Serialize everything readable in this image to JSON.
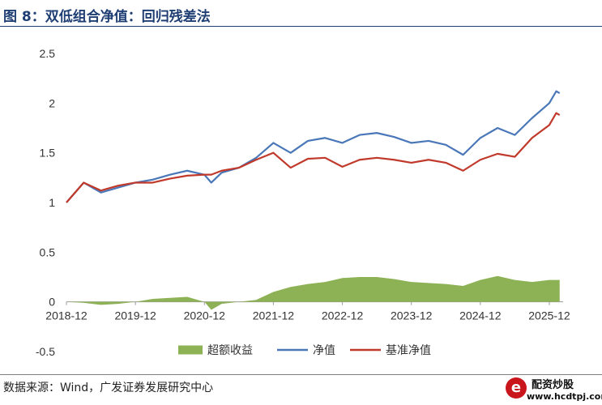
{
  "figure": {
    "title": "图 8：双低组合净值：回归残差法",
    "source": "数据来源：Wind，广发证券发展研究中心"
  },
  "watermark": {
    "mark": "e",
    "name": "配资炒股",
    "url": "www.hcdtpj.com"
  },
  "chart_data": {
    "type": "line",
    "title": "",
    "xlabel": "",
    "ylabel": "",
    "x_ticks": [
      "2018-12",
      "2019-12",
      "2020-12",
      "2021-12",
      "2022-12",
      "2023-12",
      "2024-12",
      "2025-12"
    ],
    "y_ticks": [
      "2.5",
      "2",
      "1.5",
      "1",
      "0.5",
      "0",
      "-0.5"
    ],
    "ylim": [
      -0.5,
      2.5
    ],
    "xlim": [
      0,
      7.2
    ],
    "x_unit": "years since 2018-12",
    "grid": false,
    "legend_position": "bottom",
    "series": [
      {
        "name": "超额收益",
        "render": "area",
        "color": "#8db255",
        "x": [
          0,
          0.25,
          0.5,
          0.75,
          1.0,
          1.25,
          1.5,
          1.75,
          2.0,
          2.1,
          2.25,
          2.5,
          2.75,
          3.0,
          3.25,
          3.5,
          3.75,
          4.0,
          4.25,
          4.5,
          4.75,
          5.0,
          5.25,
          5.5,
          5.75,
          6.0,
          6.25,
          6.5,
          6.75,
          7.0,
          7.15
        ],
        "values": [
          0,
          -0.01,
          -0.03,
          -0.02,
          0.0,
          0.03,
          0.04,
          0.05,
          0.0,
          -0.08,
          -0.02,
          0.0,
          0.02,
          0.1,
          0.15,
          0.18,
          0.2,
          0.24,
          0.25,
          0.25,
          0.23,
          0.2,
          0.19,
          0.18,
          0.16,
          0.22,
          0.26,
          0.22,
          0.2,
          0.22,
          0.22
        ]
      },
      {
        "name": "净值",
        "render": "line",
        "color": "#4a77b8",
        "x": [
          0,
          0.25,
          0.5,
          0.75,
          1.0,
          1.25,
          1.5,
          1.75,
          2.0,
          2.1,
          2.25,
          2.5,
          2.75,
          3.0,
          3.25,
          3.5,
          3.75,
          4.0,
          4.25,
          4.5,
          4.75,
          5.0,
          5.25,
          5.5,
          5.75,
          6.0,
          6.25,
          6.5,
          6.75,
          7.0,
          7.1,
          7.15
        ],
        "values": [
          1.0,
          1.2,
          1.1,
          1.15,
          1.2,
          1.23,
          1.28,
          1.32,
          1.28,
          1.2,
          1.3,
          1.35,
          1.45,
          1.6,
          1.5,
          1.62,
          1.65,
          1.6,
          1.68,
          1.7,
          1.66,
          1.6,
          1.62,
          1.58,
          1.48,
          1.65,
          1.75,
          1.68,
          1.85,
          2.0,
          2.12,
          2.1
        ]
      },
      {
        "name": "基准净值",
        "render": "line",
        "color": "#c0392b",
        "x": [
          0,
          0.25,
          0.5,
          0.75,
          1.0,
          1.25,
          1.5,
          1.75,
          2.0,
          2.1,
          2.25,
          2.5,
          2.75,
          3.0,
          3.25,
          3.5,
          3.75,
          4.0,
          4.25,
          4.5,
          4.75,
          5.0,
          5.25,
          5.5,
          5.75,
          6.0,
          6.25,
          6.5,
          6.75,
          7.0,
          7.1,
          7.15
        ],
        "values": [
          1.0,
          1.2,
          1.12,
          1.17,
          1.2,
          1.2,
          1.24,
          1.27,
          1.28,
          1.28,
          1.32,
          1.35,
          1.43,
          1.5,
          1.35,
          1.44,
          1.45,
          1.36,
          1.43,
          1.45,
          1.43,
          1.4,
          1.43,
          1.4,
          1.32,
          1.43,
          1.49,
          1.46,
          1.65,
          1.78,
          1.9,
          1.88
        ]
      }
    ]
  }
}
